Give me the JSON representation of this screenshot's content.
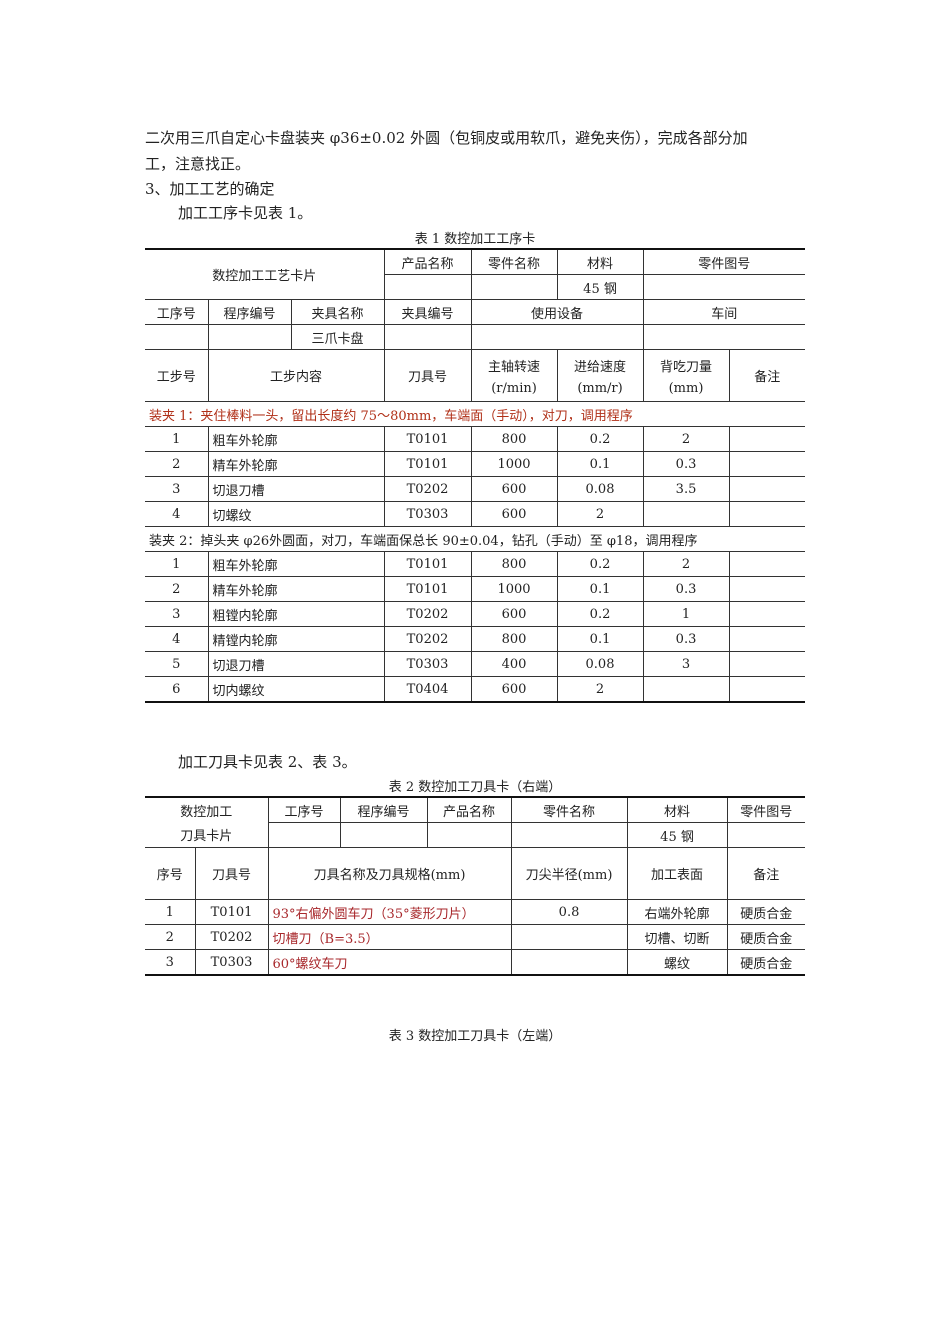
{
  "intro": {
    "line1": "二次用三爪自定心卡盘装夹 φ36±0.02 外圆（包铜皮或用软爪，避免夹伤），完成各部分加",
    "line2": "工，注意找正。",
    "heading": "3、加工工艺的确定",
    "line3": "加工工序卡见表 1。"
  },
  "table1": {
    "caption": "表 1  数控加工工序卡",
    "title": "数控加工工艺卡片",
    "product_name": "产品名称",
    "part_name": "零件名称",
    "material": "材料",
    "part_drawing": "零件图号",
    "material_value": "45 钢",
    "process_no": "工序号",
    "program_no": "程序编号",
    "fixture_name": "夹具名称",
    "fixture_no": "夹具编号",
    "equipment": "使用设备",
    "workshop": "车间",
    "fixture_value": "三爪卡盘",
    "step_no": "工步号",
    "step_content": "工步内容",
    "tool_no": "刀具号",
    "spindle": "主轴转速",
    "spindle_unit": "(r/min)",
    "feed": "进给速度",
    "feed_unit": "(mm/r)",
    "depth": "背吃刀量",
    "depth_unit": "(mm)",
    "remark": "备注",
    "clamp1": "装夹 1：夹住棒料一头，留出长度约 75～80mm，车端面（手动），对刀，调用程序",
    "steps1": [
      [
        "1",
        "粗车外轮廓",
        "T0101",
        "800",
        "0.2",
        "2"
      ],
      [
        "2",
        "精车外轮廓",
        "T0101",
        "1000",
        "0.1",
        "0.3"
      ],
      [
        "3",
        "切退刀槽",
        "T0202",
        "600",
        "0.08",
        "3.5"
      ],
      [
        "4",
        "切螺纹",
        "T0303",
        "600",
        "2",
        ""
      ]
    ],
    "clamp2": "装夹 2：掉头夹 φ26外圆面，对刀，车端面保总长 90±0.04，钻孔（手动）至 φ18，调用程序",
    "steps2": [
      [
        "1",
        "粗车外轮廓",
        "T0101",
        "800",
        "0.2",
        "2"
      ],
      [
        "2",
        "精车外轮廓",
        "T0101",
        "1000",
        "0.1",
        "0.3"
      ],
      [
        "3",
        "粗镗内轮廓",
        "T0202",
        "600",
        "0.2",
        "1"
      ],
      [
        "4",
        "精镗内轮廓",
        "T0202",
        "800",
        "0.1",
        "0.3"
      ],
      [
        "5",
        "切退刀槽",
        "T0303",
        "400",
        "0.08",
        "3"
      ],
      [
        "6",
        "切内螺纹",
        "T0404",
        "600",
        "2",
        ""
      ]
    ]
  },
  "para2": "加工刀具卡见表 2、表 3。",
  "table2": {
    "caption": "表 2  数控加工刀具卡（右端）",
    "title1": "数控加工",
    "title2": "刀具卡片",
    "process_no": "工序号",
    "program_no": "程序编号",
    "product_name": "产品名称",
    "part_name": "零件名称",
    "material": "材料",
    "part_drawing": "零件图号",
    "material_value": "45 钢",
    "seq": "序号",
    "tool_no": "刀具号",
    "tool_spec": "刀具名称及刀具规格(mm)",
    "nose_radius": "刀尖半径(mm)",
    "surface": "加工表面",
    "remark": "备注",
    "rows": [
      [
        "1",
        "T0101",
        "93°右偏外圆车刀（35°菱形刀片）",
        "0.8",
        "右端外轮廓",
        "硬质合金"
      ],
      [
        "2",
        "T0202",
        "切槽刀（B=3.5）",
        "",
        "切槽、切断",
        "硬质合金"
      ],
      [
        "3",
        "T0303",
        "60°螺纹车刀",
        "",
        "螺纹",
        "硬质合金"
      ]
    ]
  },
  "caption3": "表 3  数控加工刀具卡（左端）"
}
